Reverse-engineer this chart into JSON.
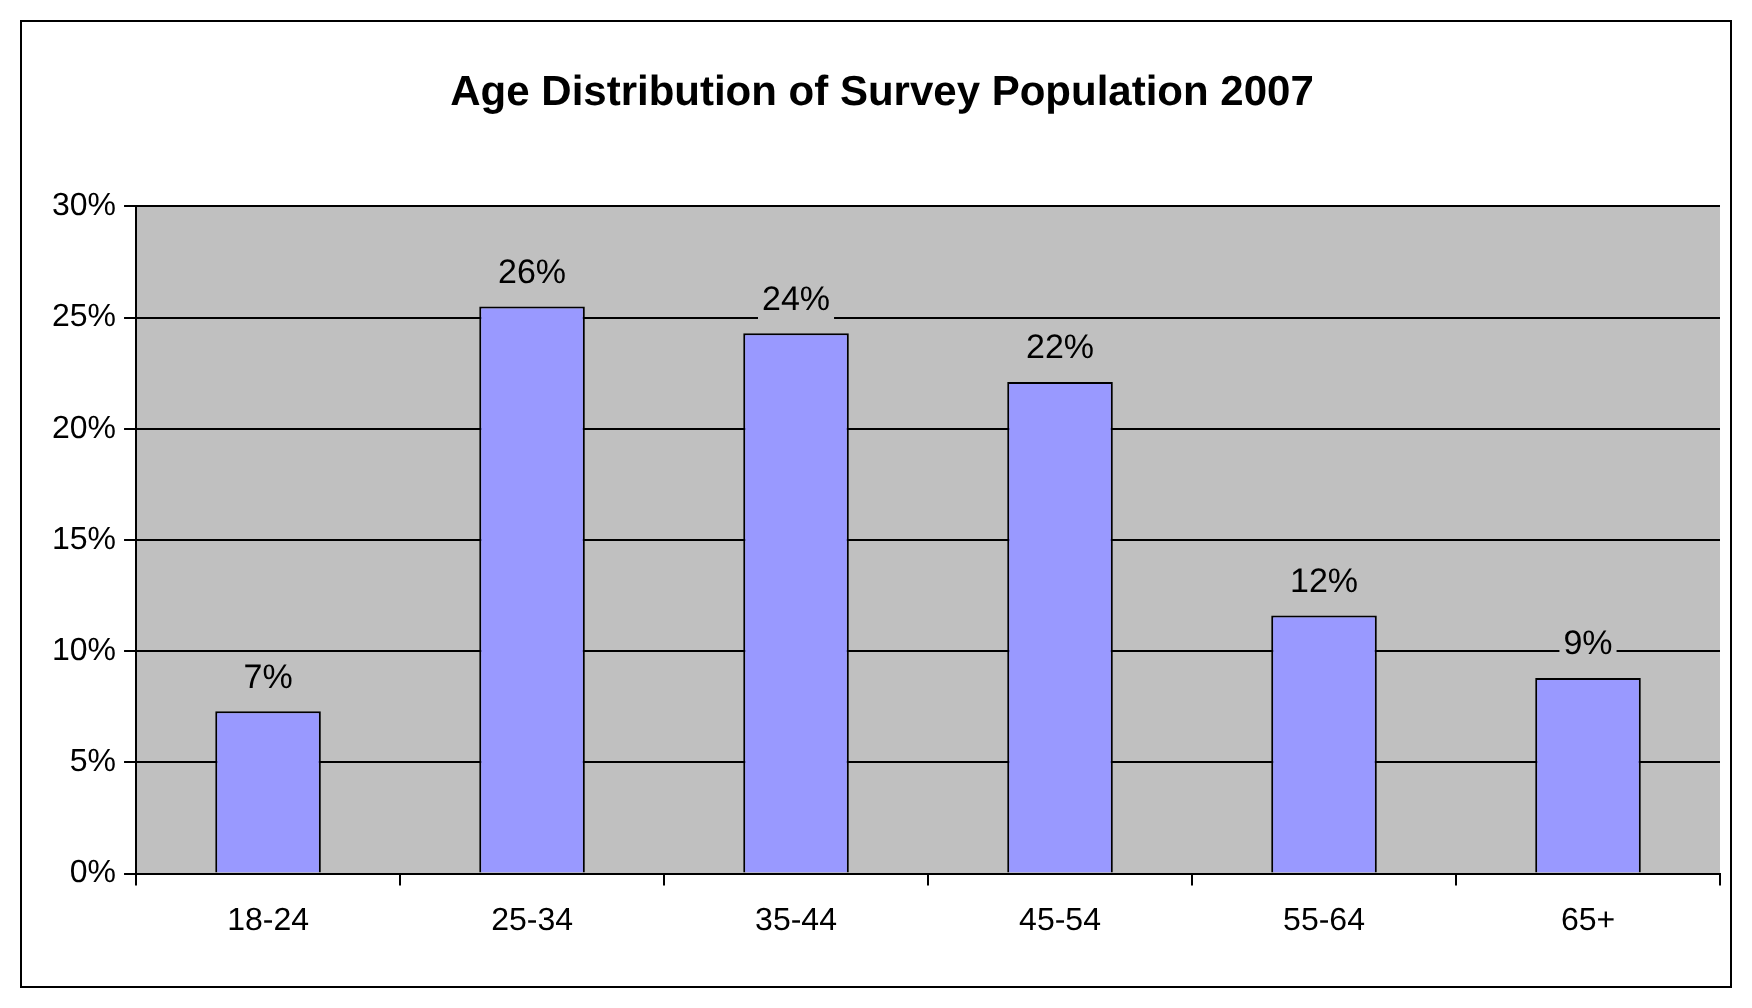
{
  "chart_data": {
    "type": "bar",
    "title": "Age Distribution of Survey Population 2007",
    "categories": [
      "18-24",
      "25-34",
      "35-44",
      "45-54",
      "55-64",
      "65+"
    ],
    "values": [
      7.3,
      25.5,
      24.3,
      22.1,
      11.6,
      8.8
    ],
    "value_labels": [
      "7%",
      "26%",
      "24%",
      "22%",
      "12%",
      "9%"
    ],
    "color": "#9999ff",
    "ylim": [
      0,
      30
    ],
    "yticks": [
      {
        "value": 0,
        "label": "0%"
      },
      {
        "value": 5,
        "label": "5%"
      },
      {
        "value": 10,
        "label": "10%"
      },
      {
        "value": 15,
        "label": "15%"
      },
      {
        "value": 20,
        "label": "20%"
      },
      {
        "value": 25,
        "label": "25%"
      },
      {
        "value": 30,
        "label": "30%"
      }
    ],
    "grid": "y"
  }
}
